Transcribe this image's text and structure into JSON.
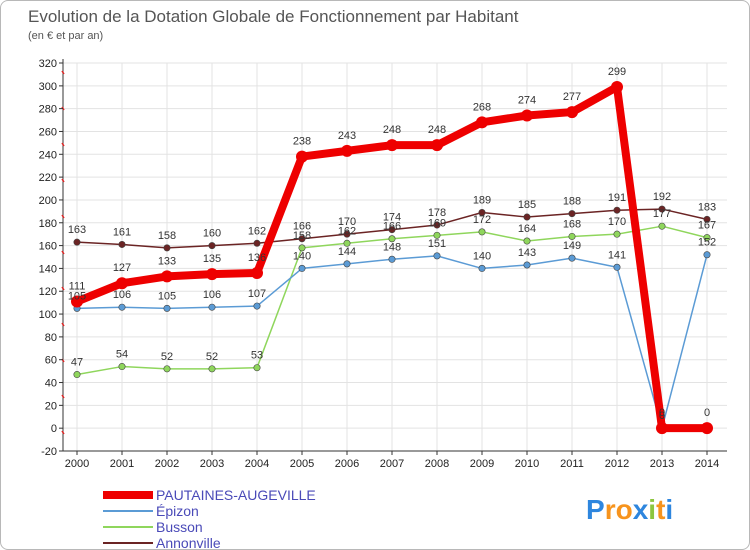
{
  "chart_data": {
    "type": "line",
    "title": "Evolution de la Dotation Globale de Fonctionnement par Habitant",
    "subtitle": "(en € et par an)",
    "xlabel": "",
    "ylabel": "",
    "ylim": [
      -20,
      320
    ],
    "ystep": 20,
    "grid": true,
    "legend_position": "bottom-left",
    "categories": [
      "2000",
      "2001",
      "2002",
      "2003",
      "2004",
      "2005",
      "2006",
      "2007",
      "2008",
      "2009",
      "2010",
      "2011",
      "2012",
      "2013",
      "2014"
    ],
    "yticks": [
      "-20",
      "0",
      "20",
      "40",
      "60",
      "80",
      "100",
      "120",
      "140",
      "160",
      "180",
      "200",
      "220",
      "240",
      "260",
      "280",
      "300",
      "320"
    ],
    "series": [
      {
        "name": "PAUTAINES-AUGEVILLE",
        "color": "#ee0000",
        "values": [
          111,
          127,
          133,
          135,
          136,
          238,
          243,
          248,
          248,
          268,
          274,
          277,
          299,
          0,
          0
        ],
        "labels": [
          "111",
          "127",
          "133",
          "135",
          "136",
          "238",
          "243",
          "248",
          "248",
          "268",
          "274",
          "277",
          "299",
          "0",
          "0"
        ]
      },
      {
        "name": "Épizon",
        "color": "#5b9bd5",
        "values": [
          105,
          106,
          105,
          106,
          107,
          140,
          144,
          148,
          151,
          140,
          143,
          149,
          141,
          0,
          152
        ],
        "labels": [
          "105",
          "106",
          "105",
          "106",
          "107",
          "140",
          "144",
          "148",
          "151",
          "140",
          "143",
          "149",
          "141",
          "0",
          "152"
        ]
      },
      {
        "name": "Busson",
        "color": "#8fd65c",
        "values": [
          47,
          54,
          52,
          52,
          53,
          158,
          162,
          166,
          169,
          172,
          164,
          168,
          170,
          177,
          167
        ],
        "labels": [
          "47",
          "54",
          "52",
          "52",
          "53",
          "158",
          "162",
          "166",
          "169",
          "172",
          "164",
          "168",
          "170",
          "177",
          "167"
        ]
      },
      {
        "name": "Annonville",
        "color": "#6b2424",
        "values": [
          163,
          161,
          158,
          160,
          162,
          166,
          170,
          174,
          178,
          189,
          185,
          188,
          191,
          192,
          183
        ],
        "labels": [
          "163",
          "161",
          "158",
          "160",
          "162",
          "166",
          "170",
          "174",
          "178",
          "189",
          "185",
          "188",
          "191",
          "192",
          "183"
        ]
      }
    ]
  },
  "brand": {
    "logo_text": "Proxiti",
    "letter_colors": [
      "#2e86de",
      "#f7941d",
      "#f7941d",
      "#2e86de",
      "#8cc63f",
      "#f7941d",
      "#2e86de"
    ]
  },
  "colors": {
    "grid": "#e3e3e3",
    "axis": "#333333",
    "title": "#555555"
  }
}
